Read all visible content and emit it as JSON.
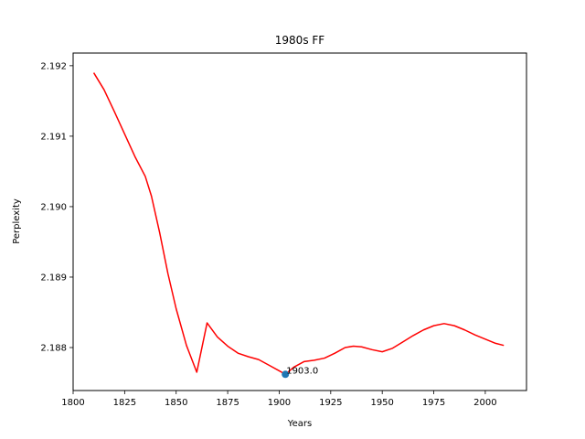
{
  "chart_data": {
    "type": "line",
    "title": "1980s FF",
    "xlabel": "Years",
    "ylabel": "Perplexity",
    "xlim": [
      1800,
      2020
    ],
    "ylim": [
      2.18739,
      2.19218
    ],
    "xticks": [
      1800,
      1825,
      1850,
      1875,
      1900,
      1925,
      1950,
      1975,
      2000
    ],
    "yticks": [
      2.188,
      2.189,
      2.19,
      2.191,
      2.192
    ],
    "ytick_labels": [
      "2.188",
      "2.189",
      "2.190",
      "2.191",
      "2.192"
    ],
    "grid": false,
    "line_color": "#ff0000",
    "marker_color": "#1f77b4",
    "series": [
      {
        "x": [
          1810,
          1815,
          1820,
          1825,
          1830,
          1835,
          1838,
          1842,
          1846,
          1850,
          1855,
          1860,
          1865,
          1870,
          1875,
          1880,
          1885,
          1890,
          1895,
          1900,
          1903,
          1907,
          1912,
          1917,
          1922,
          1927,
          1932,
          1936,
          1940,
          1945,
          1950,
          1955,
          1960,
          1965,
          1970,
          1975,
          1980,
          1985,
          1990,
          1995,
          2000,
          2005,
          2009
        ],
        "y": [
          2.1919,
          2.19166,
          2.19135,
          2.19103,
          2.19071,
          2.19043,
          2.19015,
          2.18963,
          2.18905,
          2.18855,
          2.18803,
          2.18765,
          2.18835,
          2.18815,
          2.18802,
          2.18792,
          2.18787,
          2.18783,
          2.18775,
          2.18767,
          2.18762,
          2.18772,
          2.1878,
          2.18782,
          2.18785,
          2.18792,
          2.188,
          2.18802,
          2.18801,
          2.18797,
          2.18794,
          2.18799,
          2.18808,
          2.18817,
          2.18825,
          2.18831,
          2.18834,
          2.18831,
          2.18825,
          2.18818,
          2.18812,
          2.18806,
          2.18803
        ]
      }
    ],
    "highlight": {
      "x": 1903,
      "y": 2.18762,
      "label": "1903.0"
    }
  }
}
